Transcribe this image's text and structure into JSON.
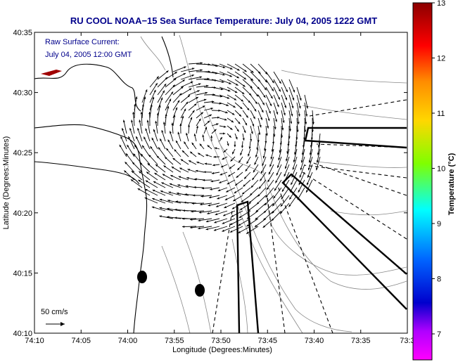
{
  "header": {
    "title": "RU COOL  NOAA−15  Sea Surface Temperature:  July 04, 2005 1222 GMT"
  },
  "annotations": {
    "current_label": "Raw Surface Current:",
    "current_time": "July 04, 2005 12:00 GMT",
    "scale_label": "50 cm/s"
  },
  "axes": {
    "xlabel": "Longitude (Degrees:Minutes)",
    "ylabel": "Latitude (Degrees:Minutes)",
    "xticks": [
      "74:10",
      "74:05",
      "74:00",
      "73:55",
      "73:50",
      "73:45",
      "73:40",
      "73:35",
      "73:3"
    ],
    "yticks": [
      "40:35",
      "40:30",
      "40:25",
      "40:20",
      "40:15",
      "40:10"
    ]
  },
  "colorbar": {
    "label": "Temperature (°C)",
    "ticks": [
      "13",
      "12",
      "11",
      "10",
      "9",
      "8",
      "7"
    ],
    "colors": [
      "#8b0000",
      "#ff0000",
      "#ff8c00",
      "#ffd700",
      "#7fff00",
      "#00ffff",
      "#0064ff",
      "#0000cd",
      "#ff00ff"
    ]
  },
  "colors": {
    "title": "#00008b",
    "land": "#000000",
    "sst_patch": "#a00000"
  }
}
